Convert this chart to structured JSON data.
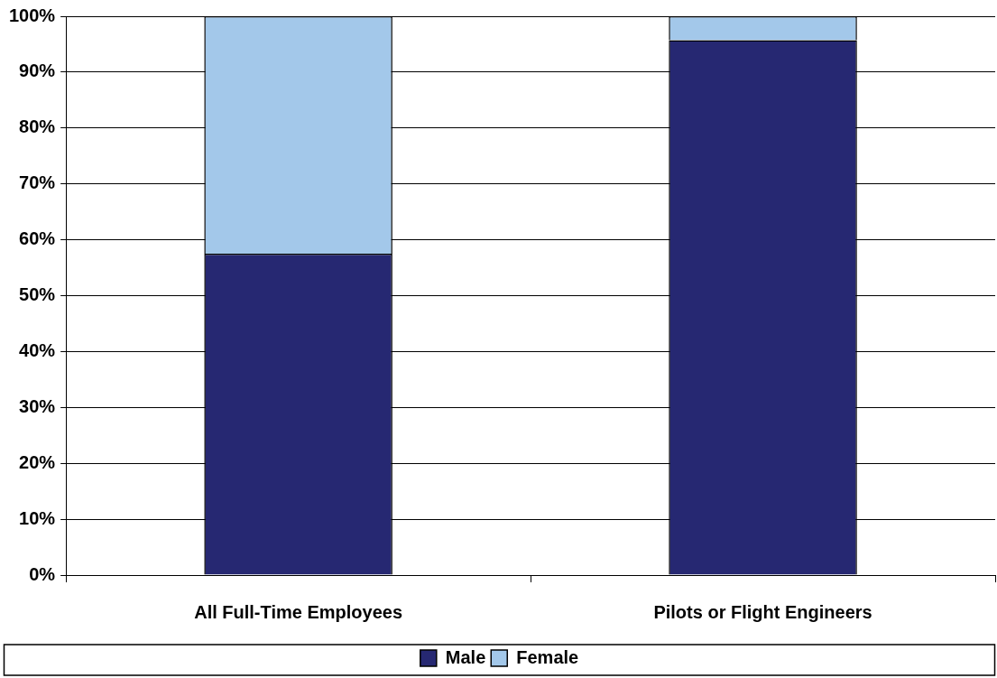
{
  "chart_data": {
    "type": "bar",
    "stacked": true,
    "categories": [
      "All Full-Time Employees",
      "Pilots or Flight Engineers"
    ],
    "series": [
      {
        "name": "Male",
        "color": "#262872",
        "values": [
          57.5,
          95.7
        ]
      },
      {
        "name": "Female",
        "color": "#a3c8ea",
        "values": [
          42.5,
          4.3
        ]
      }
    ],
    "ylim": [
      0,
      100
    ],
    "yticks": [
      {
        "value": 0,
        "label": "0%"
      },
      {
        "value": 10,
        "label": "10%"
      },
      {
        "value": 20,
        "label": "20%"
      },
      {
        "value": 30,
        "label": "30%"
      },
      {
        "value": 40,
        "label": "40%"
      },
      {
        "value": 50,
        "label": "50%"
      },
      {
        "value": 60,
        "label": "60%"
      },
      {
        "value": 70,
        "label": "70%"
      },
      {
        "value": 80,
        "label": "80%"
      },
      {
        "value": 90,
        "label": "90%"
      },
      {
        "value": 100,
        "label": "100%"
      }
    ],
    "grid": "y",
    "legend": "bottom"
  }
}
